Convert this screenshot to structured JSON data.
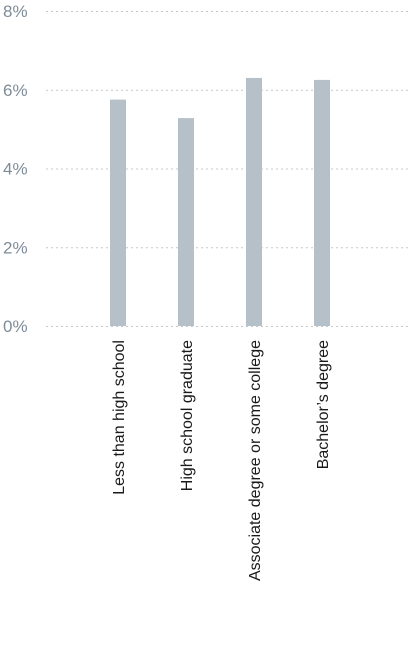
{
  "colors": {
    "bar": "#b6c0c8",
    "grid": "#c4c8cc",
    "y_tick_text": "#7e8c99",
    "x_tick_text": "#1a1a1a",
    "background": "#ffffff"
  },
  "chart_data": {
    "type": "bar",
    "title": "",
    "xlabel": "",
    "ylabel": "",
    "categories": [
      "Less than high school",
      "High school graduate",
      "Associate degree or some college",
      "Bachelor’s degree"
    ],
    "values": [
      5.75,
      5.28,
      6.3,
      6.25
    ],
    "ylim": [
      0,
      8
    ],
    "yticks": [
      0,
      2,
      4,
      6,
      8
    ],
    "ytick_labels": [
      "0%",
      "2%",
      "4%",
      "6%",
      "8%"
    ],
    "grid": true,
    "grid_style": "dashed",
    "legend": "none"
  }
}
